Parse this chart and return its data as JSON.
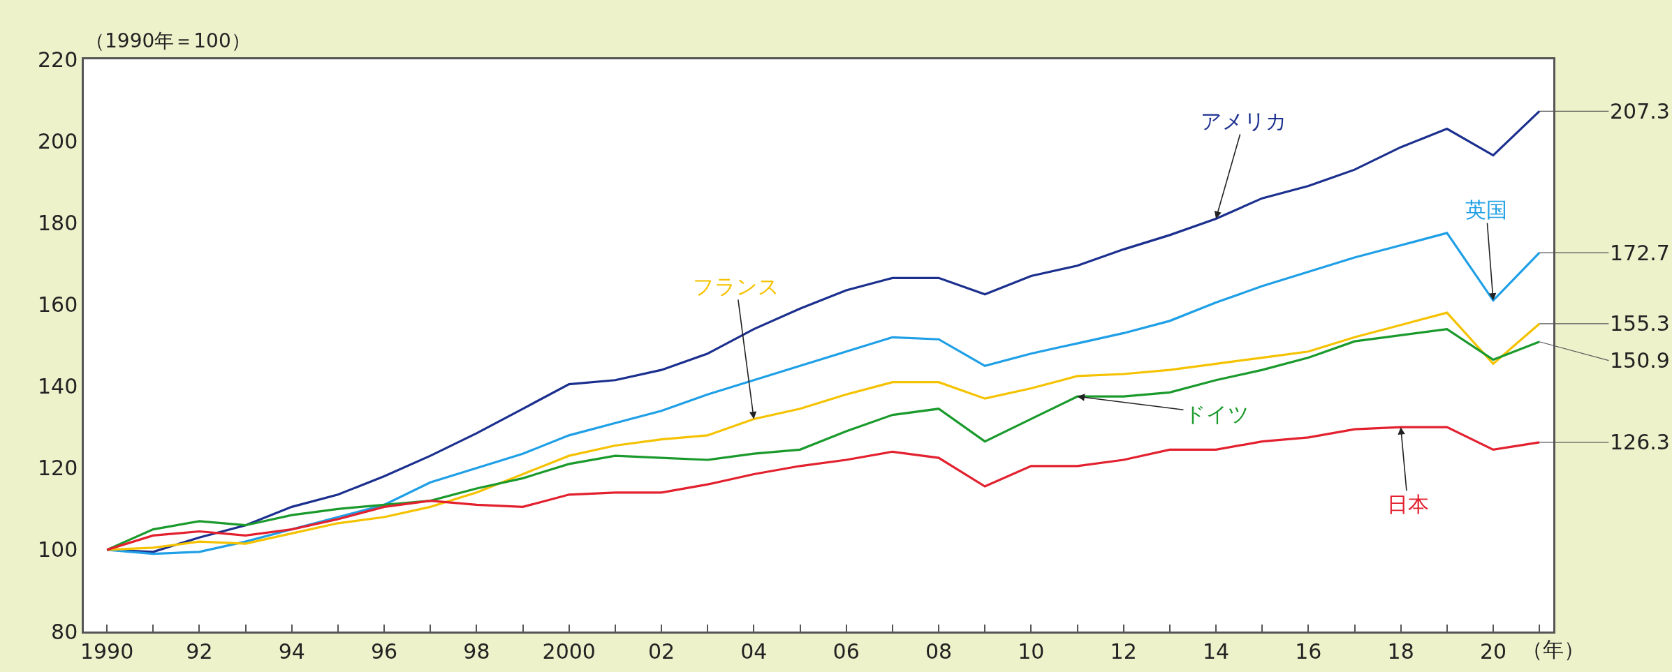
{
  "chart_data": {
    "type": "line",
    "ylabel": "（1990年＝100）",
    "xlabel": "（年）",
    "x": [
      1990,
      1991,
      1992,
      1993,
      1994,
      1995,
      1996,
      1997,
      1998,
      1999,
      2000,
      2001,
      2002,
      2003,
      2004,
      2005,
      2006,
      2007,
      2008,
      2009,
      2010,
      2011,
      2012,
      2013,
      2014,
      2015,
      2016,
      2017,
      2018,
      2019,
      2020,
      2021
    ],
    "xlim": [
      1989.5,
      2021.3
    ],
    "xticks": [
      {
        "value": 1990,
        "label": "1990"
      },
      {
        "value": 1991,
        "label": null
      },
      {
        "value": 1992,
        "label": "92"
      },
      {
        "value": 1993,
        "label": null
      },
      {
        "value": 1994,
        "label": "94"
      },
      {
        "value": 1995,
        "label": null
      },
      {
        "value": 1996,
        "label": "96"
      },
      {
        "value": 1997,
        "label": null
      },
      {
        "value": 1998,
        "label": "98"
      },
      {
        "value": 1999,
        "label": null
      },
      {
        "value": 2000,
        "label": "2000"
      },
      {
        "value": 2001,
        "label": null
      },
      {
        "value": 2002,
        "label": "02"
      },
      {
        "value": 2003,
        "label": null
      },
      {
        "value": 2004,
        "label": "04"
      },
      {
        "value": 2005,
        "label": null
      },
      {
        "value": 2006,
        "label": "06"
      },
      {
        "value": 2007,
        "label": null
      },
      {
        "value": 2008,
        "label": "08"
      },
      {
        "value": 2009,
        "label": null
      },
      {
        "value": 2010,
        "label": "10"
      },
      {
        "value": 2011,
        "label": null
      },
      {
        "value": 2012,
        "label": "12"
      },
      {
        "value": 2013,
        "label": null
      },
      {
        "value": 2014,
        "label": "14"
      },
      {
        "value": 2015,
        "label": null
      },
      {
        "value": 2016,
        "label": "16"
      },
      {
        "value": 2017,
        "label": null
      },
      {
        "value": 2018,
        "label": "18"
      },
      {
        "value": 2019,
        "label": null
      },
      {
        "value": 2020,
        "label": "20"
      },
      {
        "value": 2021,
        "label": null
      }
    ],
    "ylim": [
      80,
      220
    ],
    "yticks": [
      80,
      100,
      120,
      140,
      160,
      180,
      200,
      220
    ],
    "grid": false,
    "legend": false,
    "marker": "none",
    "line_style": "solid",
    "series": [
      {
        "name": "アメリカ",
        "color": "#1b2f8e",
        "values": [
          100,
          99.5,
          103,
          106,
          110.5,
          113.5,
          118,
          123,
          128.5,
          134.5,
          140.5,
          141.5,
          144,
          148,
          154,
          159,
          163.5,
          166.5,
          166.5,
          162.5,
          167,
          169.5,
          173.5,
          177,
          181,
          186,
          189,
          193,
          198.5,
          203,
          196.5,
          207.3
        ],
        "value_labels": [
          null,
          null,
          null,
          null,
          null,
          null,
          null,
          null,
          null,
          null,
          null,
          null,
          null,
          null,
          null,
          null,
          null,
          null,
          null,
          null,
          null,
          null,
          null,
          null,
          null,
          null,
          null,
          null,
          null,
          null,
          null,
          "207.3"
        ]
      },
      {
        "name": "英国",
        "color": "#1e9fe6",
        "values": [
          100,
          99,
          99.5,
          102,
          105,
          108,
          111,
          116.5,
          120,
          123.5,
          128,
          131,
          134,
          138,
          141.5,
          145,
          148.5,
          152,
          151.5,
          145,
          148,
          150.5,
          153,
          156,
          160.5,
          164.5,
          168,
          171.5,
          174.5,
          177.5,
          161,
          172.7
        ],
        "value_labels": [
          null,
          null,
          null,
          null,
          null,
          null,
          null,
          null,
          null,
          null,
          null,
          null,
          null,
          null,
          null,
          null,
          null,
          null,
          null,
          null,
          null,
          null,
          null,
          null,
          null,
          null,
          null,
          null,
          null,
          null,
          null,
          "172.7"
        ]
      },
      {
        "name": "フランス",
        "color": "#f5c200",
        "values": [
          100,
          100.5,
          102,
          101.5,
          104,
          106.5,
          108,
          110.5,
          114,
          118.5,
          123,
          125.5,
          127,
          128,
          132,
          134.5,
          138,
          141,
          141,
          137,
          139.5,
          142.5,
          143,
          144,
          145.5,
          147,
          148.5,
          152,
          155,
          158,
          145.5,
          155.3
        ],
        "value_labels": [
          null,
          null,
          null,
          null,
          null,
          null,
          null,
          null,
          null,
          null,
          null,
          null,
          null,
          null,
          null,
          null,
          null,
          null,
          null,
          null,
          null,
          null,
          null,
          null,
          null,
          null,
          null,
          null,
          null,
          null,
          null,
          "155.3"
        ]
      },
      {
        "name": "ドイツ",
        "color": "#1a9a2c",
        "values": [
          100,
          105,
          107,
          106,
          108.5,
          110,
          111,
          112,
          115,
          117.5,
          121,
          123,
          122.5,
          122,
          123.5,
          124.5,
          129,
          133,
          134.5,
          126.5,
          132,
          137.5,
          137.5,
          138.5,
          141.5,
          144,
          147,
          151,
          152.5,
          154,
          146.5,
          150.9
        ],
        "value_labels": [
          null,
          null,
          null,
          null,
          null,
          null,
          null,
          null,
          null,
          null,
          null,
          null,
          null,
          null,
          null,
          null,
          null,
          null,
          null,
          null,
          null,
          null,
          null,
          null,
          null,
          null,
          null,
          null,
          null,
          null,
          null,
          "150.9"
        ]
      },
      {
        "name": "日本",
        "color": "#e2202e",
        "values": [
          100,
          103.5,
          104.5,
          103.5,
          105,
          107.5,
          110.5,
          112,
          111,
          110.5,
          113.5,
          114,
          114,
          116,
          118.5,
          120.5,
          122,
          124,
          122.5,
          115.5,
          120.5,
          120.5,
          122,
          124.5,
          124.5,
          126.5,
          127.5,
          129.5,
          130,
          130,
          124.5,
          126.3
        ],
        "value_labels": [
          null,
          null,
          null,
          null,
          null,
          null,
          null,
          null,
          null,
          null,
          null,
          null,
          null,
          null,
          null,
          null,
          null,
          null,
          null,
          null,
          null,
          null,
          null,
          null,
          null,
          null,
          null,
          null,
          null,
          null,
          null,
          "126.3"
        ]
      }
    ]
  }
}
